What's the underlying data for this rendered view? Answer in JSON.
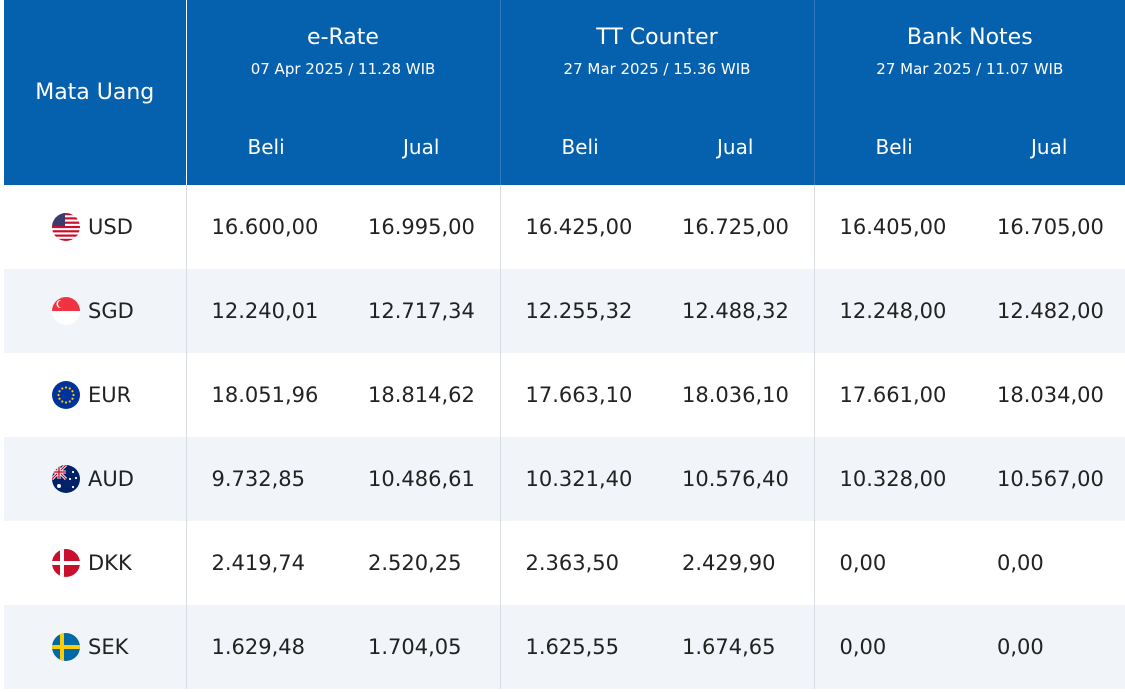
{
  "header": {
    "currency_label": "Mata Uang",
    "groups": [
      {
        "title": "e-Rate",
        "date": "07 Apr 2025 / 11.28 WIB"
      },
      {
        "title": "TT Counter",
        "date": "27 Mar 2025 / 15.36 WIB"
      },
      {
        "title": "Bank Notes",
        "date": "27 Mar 2025 / 11.07 WIB"
      }
    ],
    "buy_label": "Beli",
    "sell_label": "Jual"
  },
  "rows": [
    {
      "code": "USD",
      "flag": "us-flag-icon",
      "values": [
        "16.600,00",
        "16.995,00",
        "16.425,00",
        "16.725,00",
        "16.405,00",
        "16.705,00"
      ]
    },
    {
      "code": "SGD",
      "flag": "sg-flag-icon",
      "values": [
        "12.240,01",
        "12.717,34",
        "12.255,32",
        "12.488,32",
        "12.248,00",
        "12.482,00"
      ]
    },
    {
      "code": "EUR",
      "flag": "eu-flag-icon",
      "values": [
        "18.051,96",
        "18.814,62",
        "17.663,10",
        "18.036,10",
        "17.661,00",
        "18.034,00"
      ]
    },
    {
      "code": "AUD",
      "flag": "au-flag-icon",
      "values": [
        "9.732,85",
        "10.486,61",
        "10.321,40",
        "10.576,40",
        "10.328,00",
        "10.567,00"
      ]
    },
    {
      "code": "DKK",
      "flag": "dk-flag-icon",
      "values": [
        "2.419,74",
        "2.520,25",
        "2.363,50",
        "2.429,90",
        "0,00",
        "0,00"
      ]
    },
    {
      "code": "SEK",
      "flag": "se-flag-icon",
      "values": [
        "1.629,48",
        "1.704,05",
        "1.625,55",
        "1.674,65",
        "0,00",
        "0,00"
      ]
    }
  ],
  "colors": {
    "header_bg": "#0560ae",
    "alt_row_bg": "#f1f4f8"
  }
}
